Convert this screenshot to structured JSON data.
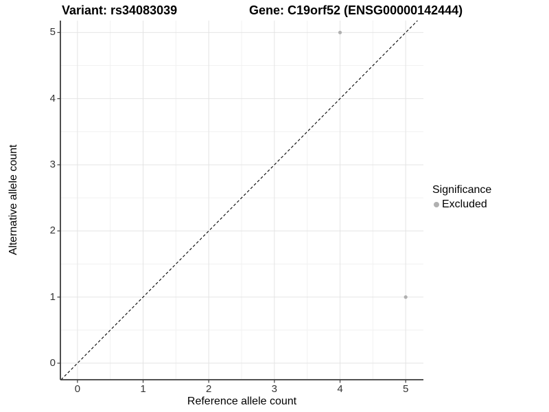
{
  "chart_data": {
    "type": "scatter",
    "title_left": "Variant: rs34083039",
    "title_right": "Gene: C19orf52 (ENSG00000142444)",
    "xlabel": "Reference allele count",
    "ylabel": "Alternative allele count",
    "xticks": [
      0,
      1,
      2,
      3,
      4,
      5
    ],
    "yticks": [
      0,
      1,
      2,
      3,
      4,
      5
    ],
    "xlim": [
      -0.26,
      5.27
    ],
    "ylim": [
      -0.25,
      5.18
    ],
    "minor_gridline_step": 0.5,
    "grid": true,
    "legend_position": "right",
    "identity_line": {
      "style": "dashed",
      "color": "#000000",
      "from": -0.25,
      "to": 5.18
    },
    "points": [
      {
        "x": 4,
        "y": 5,
        "series": "Excluded"
      },
      {
        "x": 5,
        "y": 1,
        "series": "Excluded"
      }
    ],
    "legend": {
      "title": "Significance",
      "items": [
        {
          "label": "Excluded",
          "color": "#b0b0b0"
        }
      ]
    },
    "colors": {
      "point": "#b0b0b0",
      "grid_major": "#e4e4e4",
      "grid_minor": "#f1f1f1",
      "axis": "#3a3a3a",
      "tick_label": "#333333"
    }
  }
}
